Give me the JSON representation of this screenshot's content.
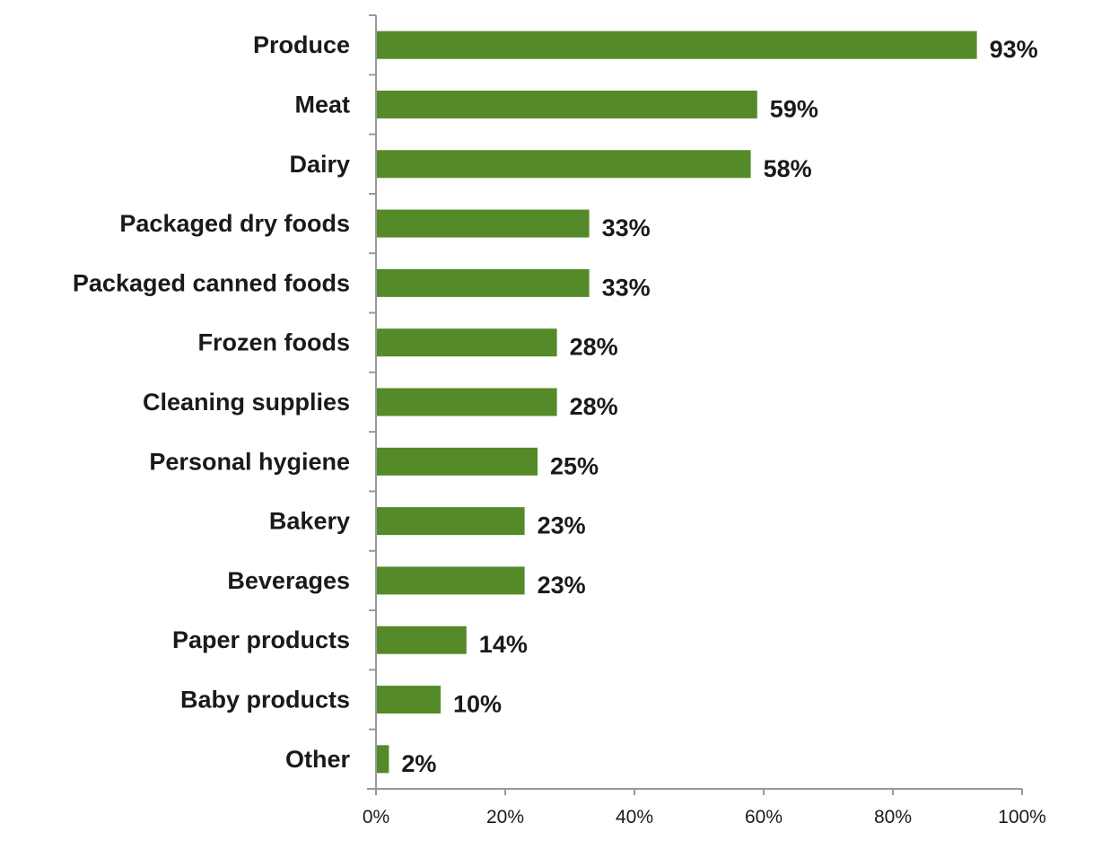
{
  "chart_data": {
    "type": "bar",
    "orientation": "horizontal",
    "title": "",
    "xlabel": "",
    "ylabel": "",
    "categories": [
      "Produce",
      "Meat",
      "Dairy",
      "Packaged dry foods",
      "Packaged canned foods",
      "Frozen foods",
      "Cleaning supplies",
      "Personal hygiene",
      "Bakery",
      "Beverages",
      "Paper products",
      "Baby products",
      "Other"
    ],
    "values": [
      93,
      59,
      58,
      33,
      33,
      28,
      28,
      25,
      23,
      23,
      14,
      10,
      2
    ],
    "data_labels": [
      "93%",
      "59%",
      "58%",
      "33%",
      "33%",
      "28%",
      "28%",
      "25%",
      "23%",
      "23%",
      "14%",
      "10%",
      "2%"
    ],
    "xlim": [
      0,
      100
    ],
    "x_ticks": [
      0,
      20,
      40,
      60,
      80,
      100
    ],
    "x_tick_labels": [
      "0%",
      "20%",
      "40%",
      "60%",
      "80%",
      "100%"
    ],
    "grid": false,
    "legend": "none",
    "colors": {
      "bar": "#548a28",
      "axis": "#999999"
    }
  }
}
